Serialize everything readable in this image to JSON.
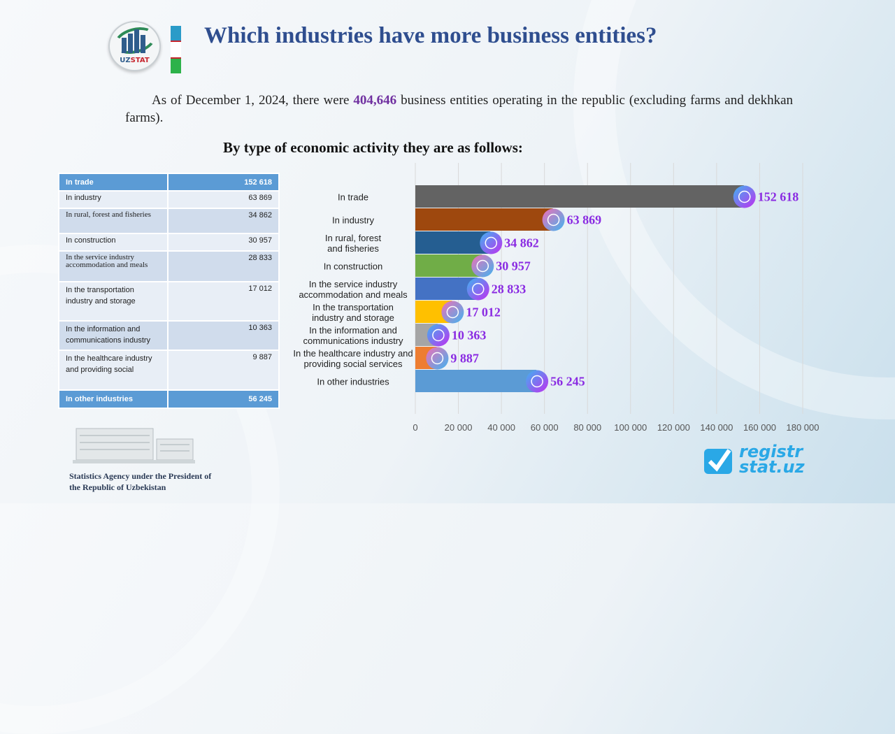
{
  "header": {
    "logo_text_a": "UZ",
    "logo_text_b": "STAT",
    "title": "Which industries have more business entities?"
  },
  "intro": {
    "before": "As of December 1, 2024, there were ",
    "highlight": "404,646",
    "after": " business entities operating in the republic (excluding farms and dekhkan  farms)."
  },
  "subtitle": "By type of economic activity they are as follows:",
  "table": [
    {
      "label": "In trade",
      "value": "152 618"
    },
    {
      "label": "In industry",
      "value": "63 869"
    },
    {
      "label": "In rural,  forest and fisheries",
      "value": "34 862"
    },
    {
      "label": "In construction",
      "value": "30 957"
    },
    {
      "label": "In the service industry accommodation  and meals",
      "value": "28 833"
    },
    {
      "label": "In the transportation industry and storage",
      "value": "17 012"
    },
    {
      "label": "In the  information and communications industry",
      "value": "10 363"
    },
    {
      "label": "In the  healthcare industry and providing social",
      "value": "9 887"
    },
    {
      "label": "In other industries",
      "value": "56 245"
    }
  ],
  "chart_data": {
    "type": "bar",
    "orientation": "horizontal",
    "title": "",
    "xlabel": "",
    "ylabel": "",
    "xlim": [
      0,
      180000
    ],
    "grid": true,
    "xticks": [
      "0",
      "20 000",
      "40 000",
      "60 000",
      "80 000",
      "100 000",
      "120 000",
      "140 000",
      "160 000",
      "180 000"
    ],
    "categories": [
      "In trade",
      "In industry",
      "In rural,  forest and fisheries",
      "In construction",
      "In the service industry accommodation and meals",
      "In the transportation industry and storage",
      "In the information and communications industry",
      "In the healthcare industry and providing social services",
      "In other industries"
    ],
    "values": [
      152618,
      63869,
      34862,
      30957,
      28833,
      17012,
      10363,
      9887,
      56245
    ],
    "labels": [
      "152 618",
      "63 869",
      "34 862",
      "30 957",
      "28 833",
      "17 012",
      "10 363",
      "9 887",
      "56 245"
    ],
    "colors": [
      "#636363",
      "#9e480e",
      "#255e91",
      "#70ad47",
      "#4472c4",
      "#ffc000",
      "#a5a5a5",
      "#ed7d31",
      "#5b9bd5"
    ],
    "icons": [
      "shop-icon",
      "factory-icon",
      "farm-icon",
      "construction-icon",
      "service-icon",
      "warehouse-icon",
      "network-icon",
      "healthcare-icon",
      "more-icon"
    ]
  },
  "footer": {
    "agency": "Statistics Agency under the President of the Republic of Uzbekistan",
    "site_a": "registr",
    "site_b": "stat.uz"
  }
}
